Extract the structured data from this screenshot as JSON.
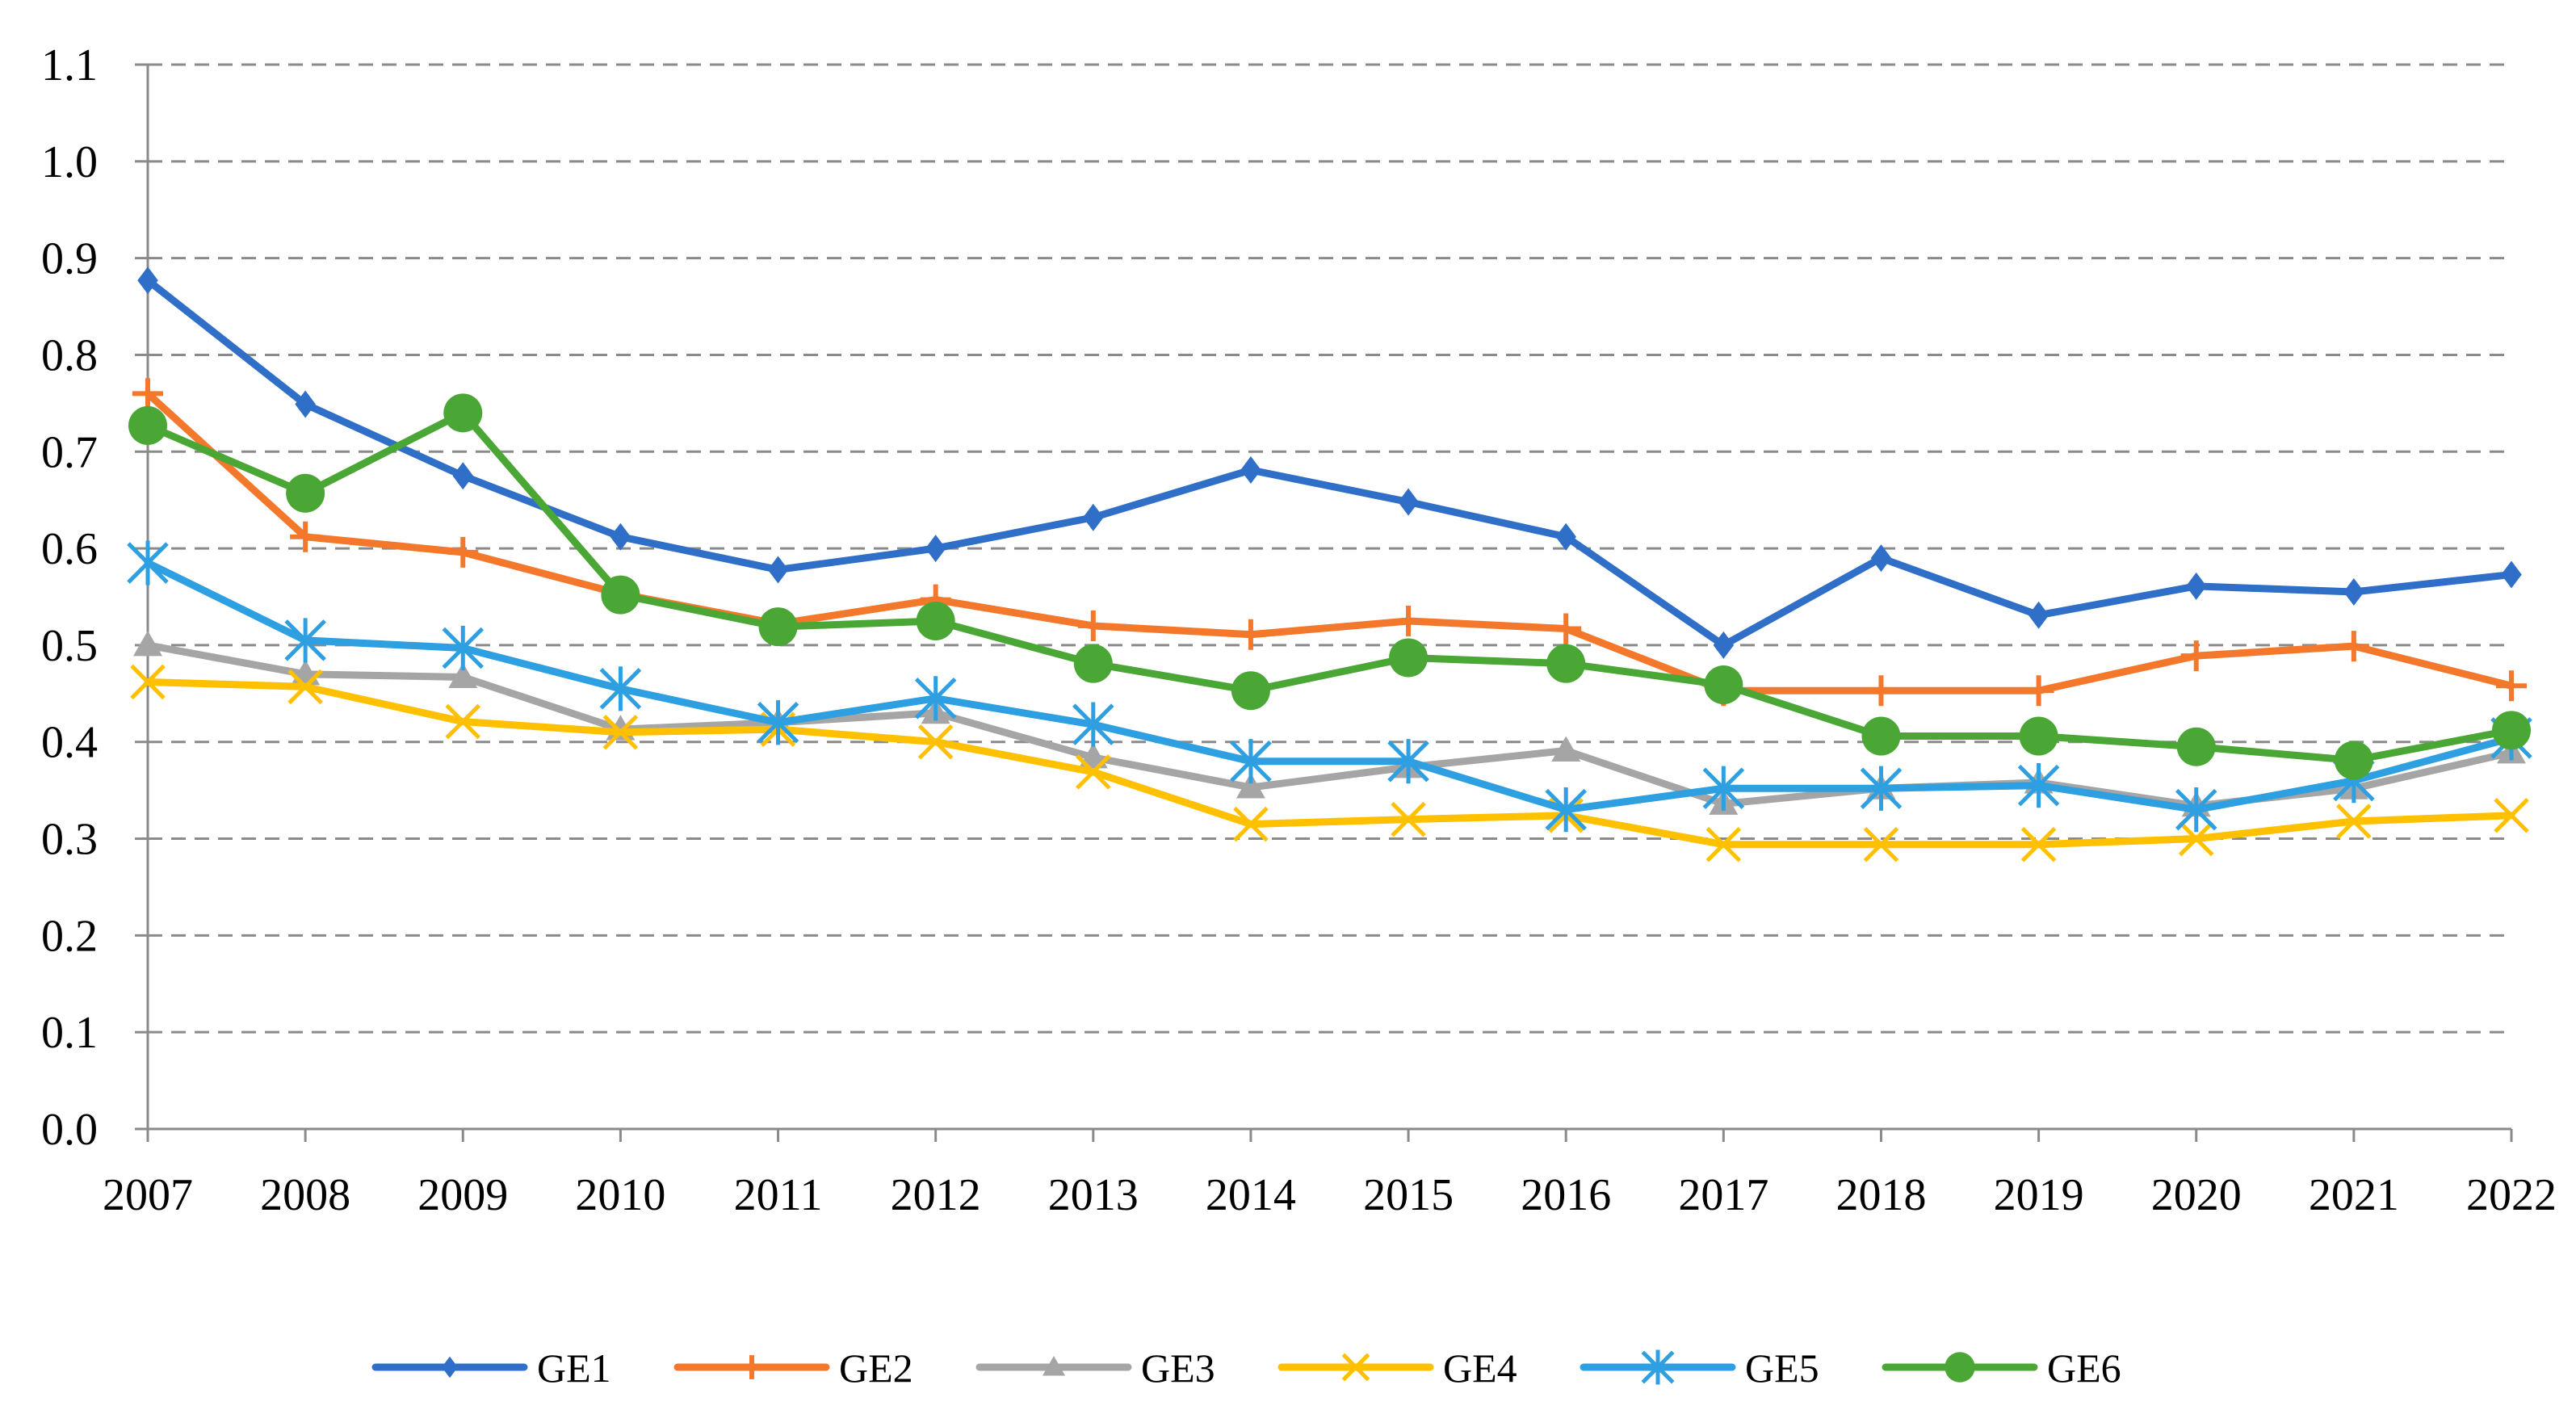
{
  "chart_data": {
    "type": "line",
    "title": "",
    "xlabel": "",
    "ylabel": "",
    "categories": [
      "2007",
      "2008",
      "2009",
      "2010",
      "2011",
      "2012",
      "2013",
      "2014",
      "2015",
      "2016",
      "2017",
      "2018",
      "2019",
      "2020",
      "2021",
      "2022"
    ],
    "ylim": [
      0,
      1.1
    ],
    "yticks": [
      0.0,
      0.1,
      0.2,
      0.3,
      0.4,
      0.5,
      0.6,
      0.7,
      0.8,
      0.9,
      1.0,
      1.1
    ],
    "ytick_labels": [
      "0.0",
      "0.1",
      "0.2",
      "0.3",
      "0.4",
      "0.5",
      "0.6",
      "0.7",
      "0.8",
      "0.9",
      "1.0",
      "1.1"
    ],
    "grid": "horizontal dashed",
    "legend_position": "bottom",
    "series": [
      {
        "name": "GE1",
        "color": "#2f6fc7",
        "marker": "diamond",
        "values": [
          0.877,
          0.749,
          0.675,
          0.612,
          0.578,
          0.6,
          0.632,
          0.681,
          0.648,
          0.612,
          0.5,
          0.59,
          0.531,
          0.561,
          0.555,
          0.573
        ]
      },
      {
        "name": "GE2",
        "color": "#f4782b",
        "marker": "plus",
        "values": [
          0.76,
          0.612,
          0.596,
          0.553,
          0.522,
          0.547,
          0.52,
          0.511,
          0.525,
          0.517,
          0.453,
          0.453,
          0.453,
          0.489,
          0.499,
          0.458
        ]
      },
      {
        "name": "GE3",
        "color": "#a5a5a5",
        "marker": "triangle",
        "values": [
          0.5,
          0.47,
          0.467,
          0.413,
          0.42,
          0.43,
          0.384,
          0.353,
          0.374,
          0.391,
          0.336,
          0.352,
          0.358,
          0.334,
          0.352,
          0.389
        ]
      },
      {
        "name": "GE4",
        "color": "#ffc000",
        "marker": "x",
        "values": [
          0.462,
          0.457,
          0.421,
          0.41,
          0.413,
          0.4,
          0.369,
          0.315,
          0.32,
          0.324,
          0.294,
          0.294,
          0.294,
          0.3,
          0.318,
          0.324
        ]
      },
      {
        "name": "GE5",
        "color": "#2e9fe0",
        "marker": "asterisk",
        "values": [
          0.585,
          0.505,
          0.497,
          0.455,
          0.42,
          0.445,
          0.418,
          0.38,
          0.38,
          0.33,
          0.352,
          0.352,
          0.355,
          0.33,
          0.36,
          0.404
        ]
      },
      {
        "name": "GE6",
        "color": "#4aa735",
        "marker": "circle",
        "values": [
          0.727,
          0.657,
          0.74,
          0.552,
          0.519,
          0.525,
          0.481,
          0.453,
          0.487,
          0.481,
          0.459,
          0.406,
          0.406,
          0.395,
          0.381,
          0.412
        ]
      }
    ]
  }
}
